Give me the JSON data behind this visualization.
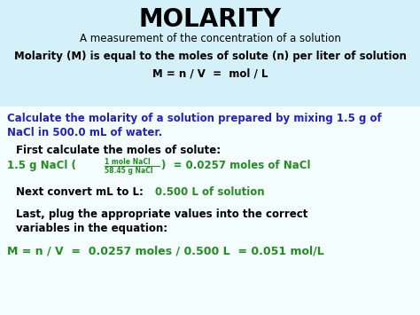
{
  "bg_color": "#e8f8fb",
  "top_box_color": "#d4f0f8",
  "bottom_box_color": "#f5feff",
  "title": "MOLARITY",
  "title_color": "#000000",
  "subtitle": "A measurement of the concentration of a solution",
  "subtitle_color": "#000000",
  "def_line1": "Molarity (M) is equal to the moles of solute (n) per liter of solution",
  "def_line2": "M = n / V  =  mol / L",
  "def_color": "#000000",
  "question_color": "#2222bb",
  "question_line1": "Calculate the molarity of a solution prepared by mixing 1.5 g of",
  "question_line2": "NaCl in 500.0 mL of water.",
  "step1_header_color": "#000000",
  "step1_header": "First calculate the moles of solute:",
  "step1_main_color": "#228B22",
  "step1_frac_top": "1 mole NaCl",
  "step1_frac_bot": "58.45 g NaCl",
  "step2_header_color": "#000000",
  "step2_header": "Next convert mL to L:",
  "step2_result_color": "#228B22",
  "step2_result": "0.500 L of solution",
  "step3_header_color": "#000000",
  "step3_header_line1": "Last, plug the appropriate values into the correct",
  "step3_header_line2": "variables in the equation:",
  "step3_result_color": "#228B22",
  "step3_result": "M = n / V  =  0.0257 moles / 0.500 L  = 0.051 mol/L"
}
